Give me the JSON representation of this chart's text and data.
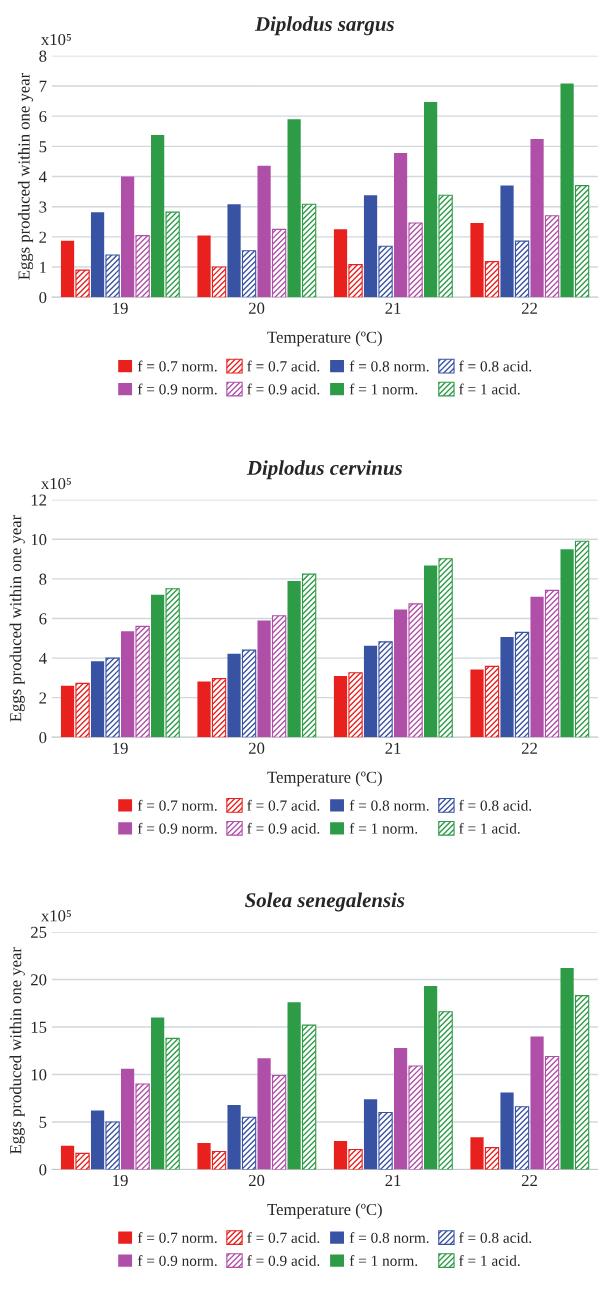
{
  "chart_data": [
    {
      "type": "bar",
      "title": "Diplodus sargus",
      "xlabel": "Temperature (ºC)",
      "ylabel": "Eggs produced within one year",
      "annotations": [
        "x10⁵"
      ],
      "categories": [
        "19",
        "20",
        "21",
        "22"
      ],
      "ylim": [
        0,
        8
      ],
      "yticks": [
        0,
        1,
        2,
        3,
        4,
        5,
        6,
        7,
        8
      ],
      "grid": "y",
      "legend": "bottom",
      "series": [
        {
          "name": "f = 0.7 norm.",
          "color": "#e8211e",
          "values": [
            1.87,
            2.05,
            2.25,
            2.46
          ]
        },
        {
          "name": "f = 0.7 acid.",
          "color": "#e8211e",
          "values": [
            0.9,
            1.0,
            1.08,
            1.18
          ]
        },
        {
          "name": "f = 0.8 norm.",
          "color": "#3953a4",
          "values": [
            2.82,
            3.08,
            3.38,
            3.7
          ]
        },
        {
          "name": "f = 0.8 acid.",
          "color": "#3953a4",
          "values": [
            1.4,
            1.54,
            1.69,
            1.86
          ]
        },
        {
          "name": "f = 0.9 norm.",
          "color": "#b04fa8",
          "values": [
            4.0,
            4.36,
            4.78,
            5.24
          ]
        },
        {
          "name": "f = 0.9 acid.",
          "color": "#b04fa8",
          "values": [
            2.04,
            2.25,
            2.46,
            2.7
          ]
        },
        {
          "name": "f = 1 norm.",
          "color": "#2e9b47",
          "values": [
            5.38,
            5.9,
            6.47,
            7.08
          ]
        },
        {
          "name": "f = 1 acid.",
          "color": "#2e9b47",
          "values": [
            2.82,
            3.08,
            3.38,
            3.7
          ]
        }
      ]
    },
    {
      "type": "bar",
      "title": "Diplodus cervinus",
      "xlabel": "Temperature (ºC)",
      "ylabel": "Eggs produced within one year",
      "annotations": [
        "x10⁵"
      ],
      "categories": [
        "19",
        "20",
        "21",
        "22"
      ],
      "ylim": [
        0,
        12
      ],
      "yticks": [
        0,
        2,
        4,
        6,
        8,
        10,
        12
      ],
      "grid": "y",
      "legend": "bottom",
      "series": [
        {
          "name": "f = 0.7 norm.",
          "color": "#e8211e",
          "values": [
            2.6,
            2.82,
            3.1,
            3.42
          ]
        },
        {
          "name": "f = 0.7 acid.",
          "color": "#e8211e",
          "values": [
            2.72,
            2.96,
            3.26,
            3.58
          ]
        },
        {
          "name": "f = 0.8 norm.",
          "color": "#3953a4",
          "values": [
            3.84,
            4.22,
            4.62,
            5.06
          ]
        },
        {
          "name": "f = 0.8 acid.",
          "color": "#3953a4",
          "values": [
            4.0,
            4.4,
            4.82,
            5.3
          ]
        },
        {
          "name": "f = 0.9 norm.",
          "color": "#b04fa8",
          "values": [
            5.36,
            5.9,
            6.46,
            7.1
          ]
        },
        {
          "name": "f = 0.9 acid.",
          "color": "#b04fa8",
          "values": [
            5.6,
            6.14,
            6.74,
            7.42
          ]
        },
        {
          "name": "f = 1 norm.",
          "color": "#2e9b47",
          "values": [
            7.2,
            7.9,
            8.68,
            9.5
          ]
        },
        {
          "name": "f = 1 acid.",
          "color": "#2e9b47",
          "values": [
            7.5,
            8.24,
            9.02,
            9.9
          ]
        }
      ]
    },
    {
      "type": "bar",
      "title": "Solea senegalensis",
      "xlabel": "Temperature (ºC)",
      "ylabel": "Eggs produced within one year",
      "annotations": [
        "x10⁵"
      ],
      "categories": [
        "19",
        "20",
        "21",
        "22"
      ],
      "ylim": [
        0,
        25
      ],
      "yticks": [
        0,
        5,
        10,
        15,
        20,
        25
      ],
      "grid": "y",
      "legend": "bottom",
      "series": [
        {
          "name": "f = 0.7 norm.",
          "color": "#e8211e",
          "values": [
            2.5,
            2.8,
            3.0,
            3.4
          ]
        },
        {
          "name": "f = 0.7 acid.",
          "color": "#e8211e",
          "values": [
            1.7,
            1.9,
            2.1,
            2.3
          ]
        },
        {
          "name": "f = 0.8 norm.",
          "color": "#3953a4",
          "values": [
            6.2,
            6.8,
            7.4,
            8.1
          ]
        },
        {
          "name": "f = 0.8 acid.",
          "color": "#3953a4",
          "values": [
            5.0,
            5.5,
            6.0,
            6.6
          ]
        },
        {
          "name": "f = 0.9 norm.",
          "color": "#b04fa8",
          "values": [
            10.6,
            11.7,
            12.8,
            14.0
          ]
        },
        {
          "name": "f = 0.9 acid.",
          "color": "#b04fa8",
          "values": [
            9.0,
            9.9,
            10.9,
            11.9
          ]
        },
        {
          "name": "f = 1 norm.",
          "color": "#2e9b47",
          "values": [
            16.0,
            17.6,
            19.3,
            21.2
          ]
        },
        {
          "name": "f = 1 acid.",
          "color": "#2e9b47",
          "values": [
            13.8,
            15.2,
            16.6,
            18.3
          ]
        }
      ]
    }
  ]
}
